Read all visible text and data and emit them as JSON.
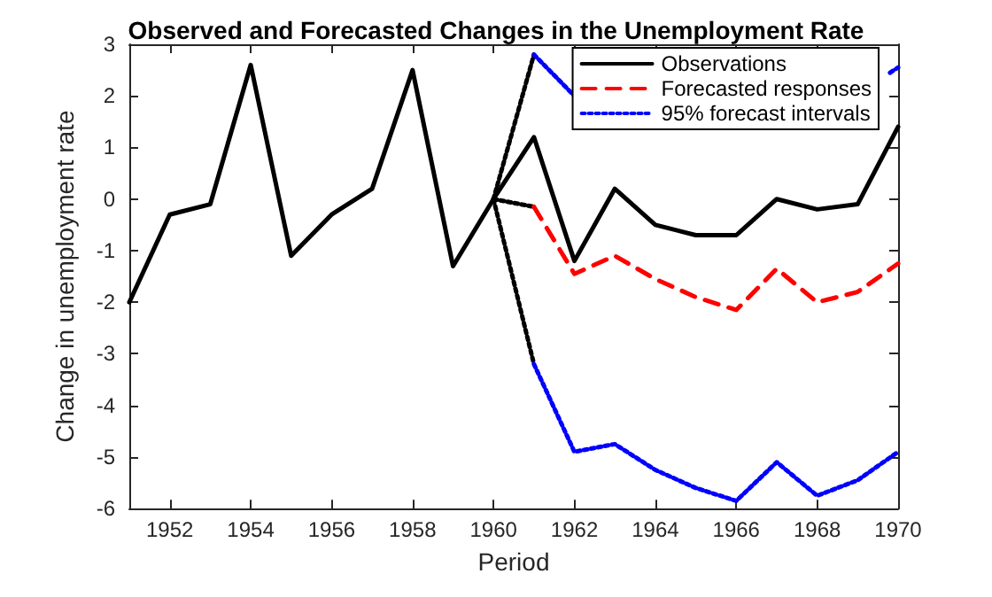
{
  "chart_data": {
    "type": "line",
    "title": "Observed and Forecasted Changes in the Unemployment Rate",
    "xlabel": "Period",
    "ylabel": "Change in unemployment rate",
    "xlim": [
      1951,
      1970
    ],
    "xticks": [
      1952,
      1954,
      1956,
      1958,
      1960,
      1962,
      1964,
      1966,
      1968,
      1970
    ],
    "ylim": [
      -6,
      3
    ],
    "yticks": [
      -6,
      -5,
      -4,
      -3,
      -2,
      -1,
      0,
      1,
      2,
      3
    ],
    "grid": false,
    "legend": "top right",
    "marker": "none",
    "series": [
      {
        "name": "Observations",
        "color": "#000000",
        "line_style": "solid",
        "x": [
          1951,
          1952,
          1953,
          1954,
          1955,
          1956,
          1957,
          1958,
          1959,
          1960,
          1961,
          1962,
          1963,
          1964,
          1965,
          1966,
          1967,
          1968,
          1969,
          1970
        ],
        "values": [
          -2.0,
          -0.3,
          -0.1,
          2.6,
          -1.1,
          -0.3,
          0.2,
          2.5,
          -1.3,
          0.0,
          1.2,
          -1.2,
          0.2,
          -0.5,
          -0.7,
          -0.7,
          0.0,
          -0.2,
          -0.1,
          1.4
        ]
      },
      {
        "name": "Forecasted responses",
        "color": "#ff0000",
        "line_style": "dashed",
        "x": [
          1961,
          1962,
          1963,
          1964,
          1965,
          1966,
          1967,
          1968,
          1969,
          1970
        ],
        "values": [
          -0.15,
          -1.45,
          -1.1,
          -1.55,
          -1.9,
          -2.15,
          -1.35,
          -2.0,
          -1.8,
          -1.25
        ]
      },
      {
        "name": "95% forecast intervals",
        "color": "#0000ff",
        "line_style": "dotted",
        "x": [
          1961,
          1962,
          1963,
          1964,
          1965,
          1966,
          1967,
          1968,
          1969.8,
          1970
        ],
        "values": [
          2.8,
          2.0,
          null,
          null,
          null,
          null,
          null,
          null,
          2.45,
          2.55
        ]
      },
      {
        "color": "#0000ff",
        "line_style": "dotted",
        "x": [
          1961,
          1962,
          1963,
          1964,
          1965,
          1966,
          1967,
          1968,
          1969,
          1970
        ],
        "values": [
          -3.2,
          -4.9,
          -4.75,
          -5.25,
          -5.6,
          -5.85,
          -5.1,
          -5.75,
          -5.45,
          -4.9
        ]
      },
      {
        "color": "#000000",
        "line_style": "dotted",
        "x": [
          1960,
          1961
        ],
        "values": [
          0.0,
          -0.15
        ]
      },
      {
        "color": "#000000",
        "line_style": "dotted",
        "x": [
          1960,
          1961
        ],
        "values": [
          0.0,
          2.8
        ]
      },
      {
        "color": "#000000",
        "line_style": "dotted",
        "x": [
          1960,
          1961
        ],
        "values": [
          0.0,
          -3.2
        ]
      }
    ]
  }
}
